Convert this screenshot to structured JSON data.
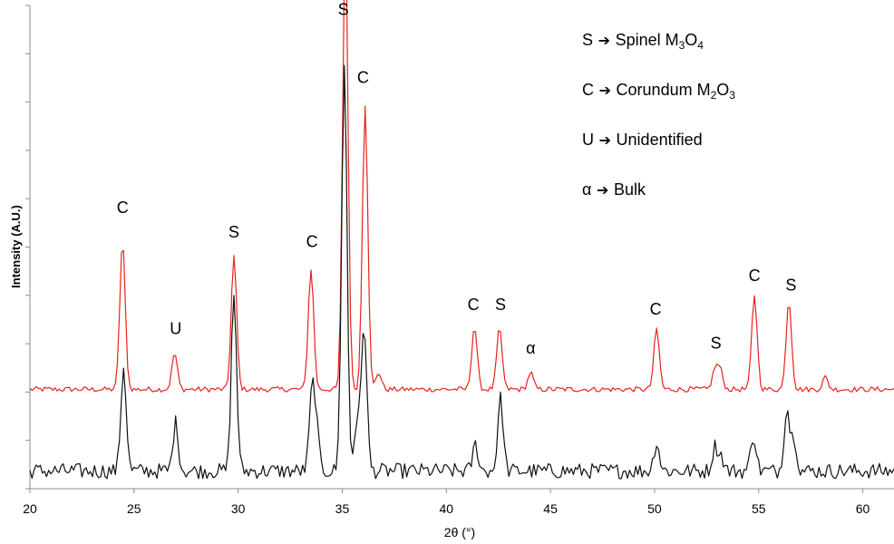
{
  "chart_data": {
    "type": "line",
    "title": "",
    "xlabel": "2θ (°)",
    "ylabel": "Intensity (A.U.)",
    "xlim": [
      20,
      61.5
    ],
    "ylim": [
      0,
      100
    ],
    "x_ticks": [
      "20",
      "25",
      "30",
      "35",
      "40",
      "45",
      "50",
      "55",
      "60"
    ],
    "grid": false,
    "baselines": {
      "red": 20.5,
      "black": 3.5
    },
    "peak_width": 0.13,
    "series": [
      {
        "color": "#e8221c",
        "peaks": [
          [
            24.45,
            30.5
          ],
          [
            26.95,
            7.5
          ],
          [
            29.8,
            27.5
          ],
          [
            33.5,
            25.0
          ],
          [
            35.15,
            94.0
          ],
          [
            36.1,
            59.0
          ],
          [
            36.75,
            3.5
          ],
          [
            41.35,
            13.0
          ],
          [
            42.55,
            12.5
          ],
          [
            44.05,
            3.5
          ],
          [
            50.1,
            12.5
          ],
          [
            52.9,
            4.0
          ],
          [
            53.15,
            4.0
          ],
          [
            54.8,
            19.5
          ],
          [
            56.45,
            18.5
          ],
          [
            58.2,
            2.5
          ]
        ]
      },
      {
        "color": "#111111",
        "peaks": [
          [
            24.5,
            21.5
          ],
          [
            27.0,
            10.0
          ],
          [
            29.8,
            36.5
          ],
          [
            33.55,
            15.5
          ],
          [
            33.75,
            8.0
          ],
          [
            35.1,
            83.5
          ],
          [
            35.7,
            10.0
          ],
          [
            36.05,
            30.5
          ],
          [
            41.4,
            5.5
          ],
          [
            42.6,
            15.0
          ],
          [
            50.1,
            6.0
          ],
          [
            52.9,
            5.0
          ],
          [
            53.2,
            3.0
          ],
          [
            54.75,
            7.5
          ],
          [
            56.35,
            13.0
          ],
          [
            56.7,
            7.0
          ]
        ]
      }
    ],
    "peak_labels": [
      {
        "text": "C",
        "x": 24.45,
        "y": 57
      },
      {
        "text": "U",
        "x": 27.0,
        "y": 32
      },
      {
        "text": "S",
        "x": 29.8,
        "y": 52
      },
      {
        "text": "C",
        "x": 33.55,
        "y": 50
      },
      {
        "text": "S",
        "x": 35.05,
        "y": 98
      },
      {
        "text": "C",
        "x": 36.0,
        "y": 84
      },
      {
        "text": "C",
        "x": 41.3,
        "y": 37
      },
      {
        "text": "S",
        "x": 42.6,
        "y": 37
      },
      {
        "text": "α",
        "x": 44.05,
        "y": 28
      },
      {
        "text": "C",
        "x": 50.05,
        "y": 36
      },
      {
        "text": "S",
        "x": 52.95,
        "y": 29
      },
      {
        "text": "C",
        "x": 54.8,
        "y": 43
      },
      {
        "text": "S",
        "x": 56.55,
        "y": 41
      }
    ],
    "legend": {
      "placement": "top-right",
      "entries": [
        {
          "symbol": "S",
          "arrow": "➔",
          "name": "Spinel M",
          "sub1": "3",
          "mid": "O",
          "sub2": "4"
        },
        {
          "symbol": "C",
          "arrow": "➔",
          "name": "Corundum  M",
          "sub1": "2",
          "mid": "O",
          "sub2": "3"
        },
        {
          "symbol": "U",
          "arrow": "➔",
          "name": "Unidentified"
        },
        {
          "symbol": "α",
          "arrow": "➔",
          "name": "Bulk"
        }
      ]
    }
  }
}
